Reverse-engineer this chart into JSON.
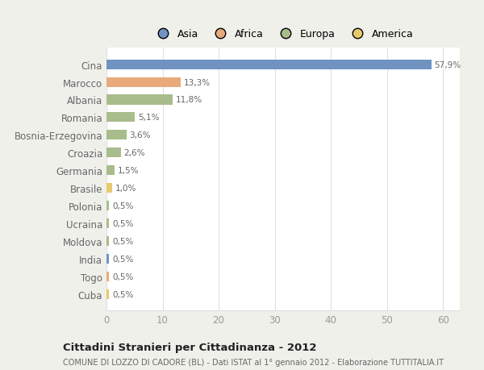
{
  "countries": [
    "Cina",
    "Marocco",
    "Albania",
    "Romania",
    "Bosnia-Erzegovina",
    "Croazia",
    "Germania",
    "Brasile",
    "Polonia",
    "Ucraina",
    "Moldova",
    "India",
    "Togo",
    "Cuba"
  ],
  "values": [
    57.9,
    13.3,
    11.8,
    5.1,
    3.6,
    2.6,
    1.5,
    1.0,
    0.5,
    0.5,
    0.5,
    0.5,
    0.5,
    0.5
  ],
  "labels": [
    "57,9%",
    "13,3%",
    "11,8%",
    "5,1%",
    "3,6%",
    "2,6%",
    "1,5%",
    "1,0%",
    "0,5%",
    "0,5%",
    "0,5%",
    "0,5%",
    "0,5%",
    "0,5%"
  ],
  "colors": [
    "#7093c2",
    "#e8aa7a",
    "#a8bc8c",
    "#a8bc8c",
    "#a8bc8c",
    "#a8bc8c",
    "#a8bc8c",
    "#e8c96b",
    "#a8bc8c",
    "#a8bc8c",
    "#a8bc8c",
    "#7093c2",
    "#e8aa7a",
    "#e8c96b"
  ],
  "legend": [
    {
      "label": "Asia",
      "color": "#7093c2"
    },
    {
      "label": "Africa",
      "color": "#e8aa7a"
    },
    {
      "label": "Europa",
      "color": "#a8bc8c"
    },
    {
      "label": "America",
      "color": "#e8c96b"
    }
  ],
  "xlim": [
    0,
    63
  ],
  "xticks": [
    0,
    10,
    20,
    30,
    40,
    50,
    60
  ],
  "title": "Cittadini Stranieri per Cittadinanza - 2012",
  "subtitle": "COMUNE DI LOZZO DI CADORE (BL) - Dati ISTAT al 1° gennaio 2012 - Elaborazione TUTTITALIA.IT",
  "fig_background": "#f0f0eb",
  "plot_background": "#ffffff",
  "bar_height": 0.55,
  "grid_color": "#e0e0e0",
  "label_color": "#666666",
  "tick_color": "#999999"
}
